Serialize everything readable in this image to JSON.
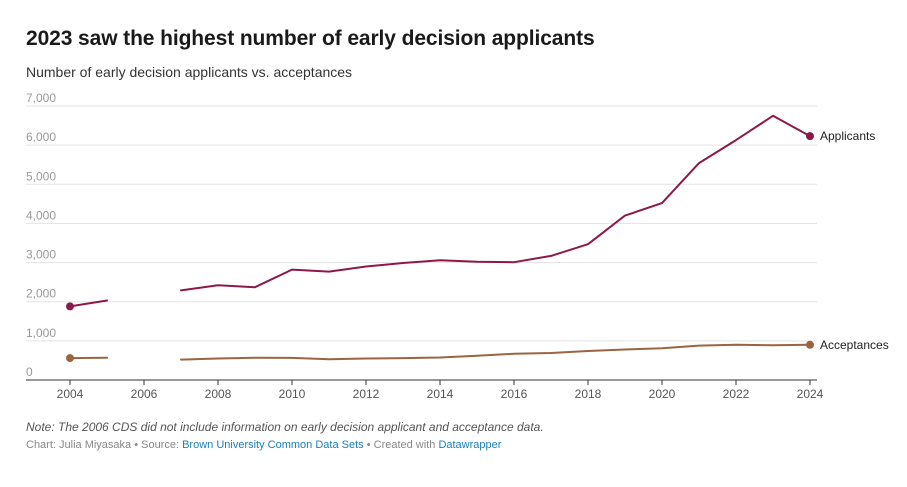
{
  "header": {
    "title": "2023 saw the highest number of early decision applicants",
    "subtitle": "Number of early decision applicants vs. acceptances"
  },
  "note": "Note: The 2006 CDS did not include information on early decision applicant and acceptance data.",
  "footer": {
    "chart_by": "Chart: Julia Miyasaka",
    "sep1": " • Source: ",
    "source": "Brown University Common Data Sets",
    "sep2": " • Created with ",
    "tool": "Datawrapper"
  },
  "colors": {
    "applicants": "#8b1a4a",
    "acceptances": "#9c6440",
    "grid": "#e3e3e3",
    "link": "#1a7fb5"
  },
  "chart_data": {
    "type": "line",
    "title": "2023 saw the highest number of early decision applicants",
    "subtitle": "Number of early decision applicants vs. acceptances",
    "xlabel": "",
    "ylabel": "",
    "xlim": [
      2004,
      2024
    ],
    "ylim": [
      0,
      7000
    ],
    "y_ticks": [
      0,
      1000,
      2000,
      3000,
      4000,
      5000,
      6000,
      7000
    ],
    "y_tick_labels": [
      "0",
      "1,000",
      "2,000",
      "3,000",
      "4,000",
      "5,000",
      "6,000",
      "7,000"
    ],
    "x_ticks": [
      2004,
      2006,
      2008,
      2010,
      2012,
      2014,
      2016,
      2018,
      2020,
      2022,
      2024
    ],
    "x_tick_labels": [
      "2004",
      "2006",
      "2008",
      "2010",
      "2012",
      "2014",
      "2016",
      "2018",
      "2020",
      "2022",
      "2024"
    ],
    "grid": true,
    "legend": "direct labels at line ends",
    "series": [
      {
        "name": "Applicants",
        "x": [
          2004,
          2005,
          2006,
          2007,
          2008,
          2009,
          2010,
          2011,
          2012,
          2013,
          2014,
          2015,
          2016,
          2017,
          2018,
          2019,
          2020,
          2021,
          2022,
          2023,
          2024
        ],
        "values": [
          1880,
          2030,
          null,
          2290,
          2420,
          2370,
          2820,
          2770,
          2900,
          2990,
          3060,
          3020,
          3010,
          3170,
          3470,
          4200,
          4520,
          5540,
          6130,
          6750,
          6230
        ]
      },
      {
        "name": "Acceptances",
        "x": [
          2004,
          2005,
          2006,
          2007,
          2008,
          2009,
          2010,
          2011,
          2012,
          2013,
          2014,
          2015,
          2016,
          2017,
          2018,
          2019,
          2020,
          2021,
          2022,
          2023,
          2024
        ],
        "values": [
          560,
          570,
          null,
          520,
          550,
          570,
          565,
          530,
          550,
          560,
          575,
          620,
          670,
          690,
          740,
          780,
          810,
          880,
          900,
          890,
          900
        ]
      }
    ]
  }
}
